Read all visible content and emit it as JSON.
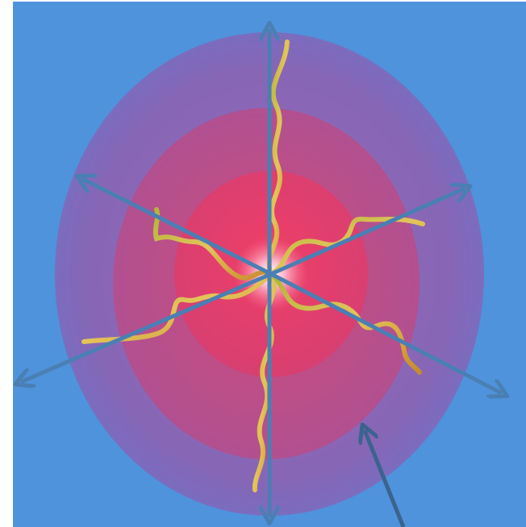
{
  "colors": {
    "background": "#4e93dc",
    "outer_shell": "#8a66b5",
    "middle_shell": "#c14c86",
    "inner_core": "#e23c6a",
    "glow_center": "#ffffff",
    "wave": "#c8a637",
    "wave_highlight": "#e9d46a",
    "arrow": "#4a7fb4",
    "pointer_arrow": "#3b638e"
  },
  "diagram": {
    "arrow_count": 6,
    "wave_count": 6,
    "shell_count": 3
  }
}
